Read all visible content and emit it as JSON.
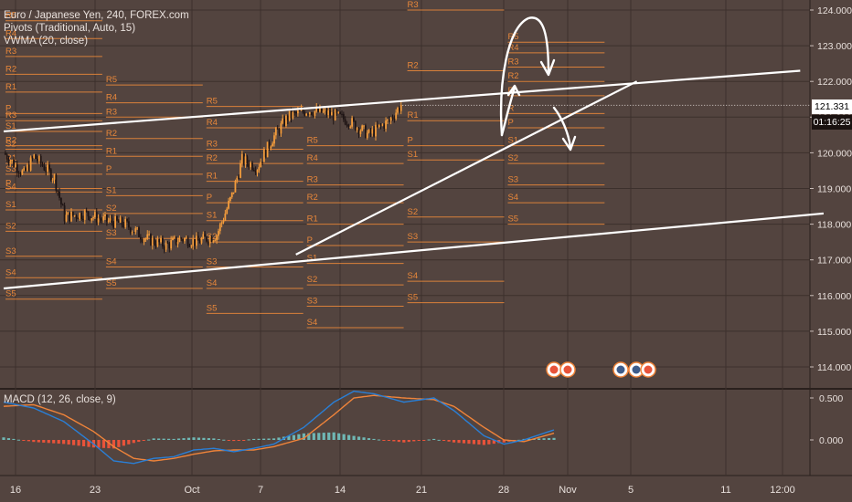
{
  "legend": {
    "symbol": "Euro / Japanese Yen, 240, FOREX.com",
    "pivots": "Pivots (Traditional, Auto, 15)",
    "vwma": "VWMA (20, close)"
  },
  "price_tag": {
    "last": "121.331",
    "countdown": "01:16:25"
  },
  "colors": {
    "background": "#53443f",
    "grid": "#3c302c",
    "candle_up": "#f39c3c",
    "candle_down": "#1e1414",
    "pivot_line": "#e8873a",
    "trendline": "#ffffff",
    "macd": "#2a7fd6",
    "signal": "#f0843a",
    "hist_pos": "#6fb7b4",
    "hist_neg": "#e8533a"
  },
  "chart_data": [
    {
      "type": "candlestick",
      "title": "Euro / Japanese Yen, 240, FOREX.com",
      "ylim": [
        113.5,
        124.5
      ],
      "y_ticks": [
        "124.000",
        "123.000",
        "122.000",
        "121.000",
        "120.000",
        "119.000",
        "118.000",
        "117.000",
        "116.000",
        "115.000",
        "114.000"
      ],
      "x_ticks": [
        "16",
        "23",
        "Oct",
        "7",
        "14",
        "21",
        "28",
        "Nov",
        "5",
        "11",
        "12:00"
      ],
      "last_price": 121.331,
      "anchors": [
        {
          "d": 0,
          "p": 120.0
        },
        {
          "d": 2,
          "p": 119.4
        },
        {
          "d": 3,
          "p": 119.9
        },
        {
          "d": 5,
          "p": 119.3
        },
        {
          "d": 6,
          "p": 118.2
        },
        {
          "d": 8,
          "p": 118.3
        },
        {
          "d": 10,
          "p": 118.1
        },
        {
          "d": 12,
          "p": 118.0
        },
        {
          "d": 14,
          "p": 117.6
        },
        {
          "d": 16,
          "p": 117.4
        },
        {
          "d": 17.5,
          "p": 117.6
        },
        {
          "d": 19,
          "p": 117.5
        },
        {
          "d": 21,
          "p": 117.7
        },
        {
          "d": 22.5,
          "p": 118.8
        },
        {
          "d": 23.5,
          "p": 119.8
        },
        {
          "d": 25,
          "p": 119.6
        },
        {
          "d": 26.5,
          "p": 120.4
        },
        {
          "d": 28,
          "p": 121.0
        },
        {
          "d": 30,
          "p": 121.2
        },
        {
          "d": 32,
          "p": 121.1
        },
        {
          "d": 34,
          "p": 120.9
        },
        {
          "d": 36,
          "p": 120.5
        },
        {
          "d": 38,
          "p": 120.9
        },
        {
          "d": 39.3,
          "p": 121.4
        }
      ],
      "pivot_sets": [
        {
          "x0": 0,
          "x1": 9.9,
          "levels": {
            "R5": 123.7,
            "R4": 123.2,
            "R3": 122.7,
            "R2": 122.2,
            "R1": 121.7,
            "P": 121.1,
            "S1": 120.6,
            "S2": 120.1,
            "S3": 119.4,
            "S4": 118.9
          }
        },
        {
          "x0": 0,
          "x1": 9.9,
          "levels": {
            "R3": 120.9,
            "R2": 120.2,
            "R1": 119.7,
            "P": 119.0,
            "S1": 118.4,
            "S2": 117.8,
            "S3": 117.1,
            "S4": 116.5,
            "S5": 115.9
          }
        },
        {
          "x0": 9.9,
          "x1": 19.8,
          "levels": {
            "R5": 121.9,
            "R4": 121.4,
            "R3": 121.0,
            "R2": 120.4,
            "R1": 119.9,
            "P": 119.4,
            "S1": 118.8,
            "S2": 118.3,
            "S3": 117.6,
            "S4": 116.8,
            "S5": 116.2
          }
        },
        {
          "x0": 19.8,
          "x1": 29.7,
          "levels": {
            "R5": 121.3,
            "R4": 120.7,
            "R3": 120.1,
            "R2": 119.7,
            "R1": 119.2,
            "P": 118.6,
            "S1": 118.1,
            "S2": 117.5,
            "S3": 116.8,
            "S4": 116.2,
            "S5": 115.5
          }
        },
        {
          "x0": 29.7,
          "x1": 39.6,
          "levels": {
            "R5": 120.2,
            "R4": 119.7,
            "R3": 119.1,
            "R2": 118.6,
            "R1": 118.0,
            "P": 117.4,
            "S1": 116.9,
            "S2": 116.3,
            "S3": 115.7,
            "S4": 115.1
          }
        },
        {
          "x0": 39.6,
          "x1": 49.5,
          "levels": {
            "R3": 124.0,
            "R2": 122.3,
            "R1": 120.9,
            "P": 120.2,
            "S1": 119.8,
            "S2": 118.2,
            "S3": 117.5,
            "S4": 116.4,
            "S5": 115.8
          }
        },
        {
          "x0": 49.5,
          "x1": 59.4,
          "levels": {
            "R5": 123.1,
            "R4": 122.8,
            "R3": 122.4,
            "R2": 122.0,
            "R1": 121.6,
            "R": 121.1,
            "P": 120.7,
            "S1": 120.2,
            "S2": 119.7,
            "S3": 119.1,
            "S4": 118.6,
            "S5": 118.0
          }
        }
      ],
      "trendlines": [
        {
          "x0": 0,
          "y0": 120.6,
          "x1": 78.5,
          "y1": 122.3
        },
        {
          "x0": 0,
          "y0": 116.2,
          "x1": 80.8,
          "y1": 118.3
        },
        {
          "x0": 28.8,
          "y0": 117.15,
          "x1": 62.4,
          "y1": 122.0
        }
      ]
    },
    {
      "type": "bar",
      "title": "MACD (12, 26, close, 9)",
      "ylim": [
        -0.34,
        0.7
      ],
      "y_ticks": [
        "0.500",
        "0.000"
      ],
      "macd_anchors": [
        [
          0,
          0.45
        ],
        [
          3,
          0.38
        ],
        [
          6,
          0.22
        ],
        [
          9,
          -0.05
        ],
        [
          11,
          -0.25
        ],
        [
          13,
          -0.28
        ],
        [
          15,
          -0.22
        ],
        [
          17,
          -0.2
        ],
        [
          19,
          -0.12
        ],
        [
          21,
          -0.1
        ],
        [
          23,
          -0.14
        ],
        [
          25,
          -0.1
        ],
        [
          27,
          -0.05
        ],
        [
          30,
          0.15
        ],
        [
          33,
          0.45
        ],
        [
          35,
          0.58
        ],
        [
          37,
          0.55
        ],
        [
          40,
          0.45
        ],
        [
          43,
          0.5
        ],
        [
          45,
          0.35
        ],
        [
          48,
          0.05
        ],
        [
          50,
          -0.05
        ],
        [
          52,
          0.0
        ],
        [
          55,
          0.12
        ]
      ],
      "signal_anchors": [
        [
          0,
          0.4
        ],
        [
          3,
          0.42
        ],
        [
          6,
          0.3
        ],
        [
          9,
          0.1
        ],
        [
          11,
          -0.08
        ],
        [
          13,
          -0.22
        ],
        [
          15,
          -0.25
        ],
        [
          17,
          -0.22
        ],
        [
          19,
          -0.17
        ],
        [
          21,
          -0.13
        ],
        [
          23,
          -0.12
        ],
        [
          25,
          -0.12
        ],
        [
          27,
          -0.08
        ],
        [
          30,
          0.02
        ],
        [
          33,
          0.3
        ],
        [
          35,
          0.5
        ],
        [
          37,
          0.53
        ],
        [
          40,
          0.5
        ],
        [
          43,
          0.48
        ],
        [
          45,
          0.4
        ],
        [
          48,
          0.15
        ],
        [
          50,
          0.0
        ],
        [
          52,
          -0.02
        ],
        [
          55,
          0.08
        ]
      ]
    }
  ]
}
